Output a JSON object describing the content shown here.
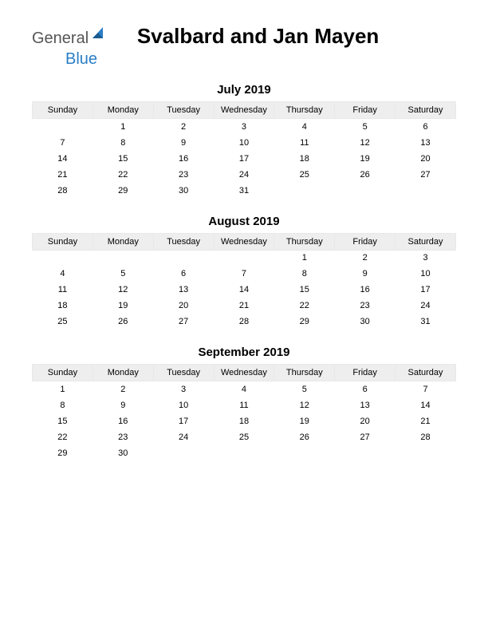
{
  "logo": {
    "text_general": "General",
    "text_blue": "Blue",
    "icon_color": "#2a7ec6"
  },
  "title": "Svalbard and Jan Mayen",
  "day_headers": [
    "Sunday",
    "Monday",
    "Tuesday",
    "Wednesday",
    "Thursday",
    "Friday",
    "Saturday"
  ],
  "header_bg": "#eeeeee",
  "months": [
    {
      "label": "July 2019",
      "weeks": [
        [
          "",
          "1",
          "2",
          "3",
          "4",
          "5",
          "6"
        ],
        [
          "7",
          "8",
          "9",
          "10",
          "11",
          "12",
          "13"
        ],
        [
          "14",
          "15",
          "16",
          "17",
          "18",
          "19",
          "20"
        ],
        [
          "21",
          "22",
          "23",
          "24",
          "25",
          "26",
          "27"
        ],
        [
          "28",
          "29",
          "30",
          "31",
          "",
          "",
          ""
        ]
      ]
    },
    {
      "label": "August 2019",
      "weeks": [
        [
          "",
          "",
          "",
          "",
          "1",
          "2",
          "3"
        ],
        [
          "4",
          "5",
          "6",
          "7",
          "8",
          "9",
          "10"
        ],
        [
          "11",
          "12",
          "13",
          "14",
          "15",
          "16",
          "17"
        ],
        [
          "18",
          "19",
          "20",
          "21",
          "22",
          "23",
          "24"
        ],
        [
          "25",
          "26",
          "27",
          "28",
          "29",
          "30",
          "31"
        ]
      ]
    },
    {
      "label": "September 2019",
      "weeks": [
        [
          "1",
          "2",
          "3",
          "4",
          "5",
          "6",
          "7"
        ],
        [
          "8",
          "9",
          "10",
          "11",
          "12",
          "13",
          "14"
        ],
        [
          "15",
          "16",
          "17",
          "18",
          "19",
          "20",
          "21"
        ],
        [
          "22",
          "23",
          "24",
          "25",
          "26",
          "27",
          "28"
        ],
        [
          "29",
          "30",
          "",
          "",
          "",
          "",
          ""
        ]
      ]
    }
  ]
}
